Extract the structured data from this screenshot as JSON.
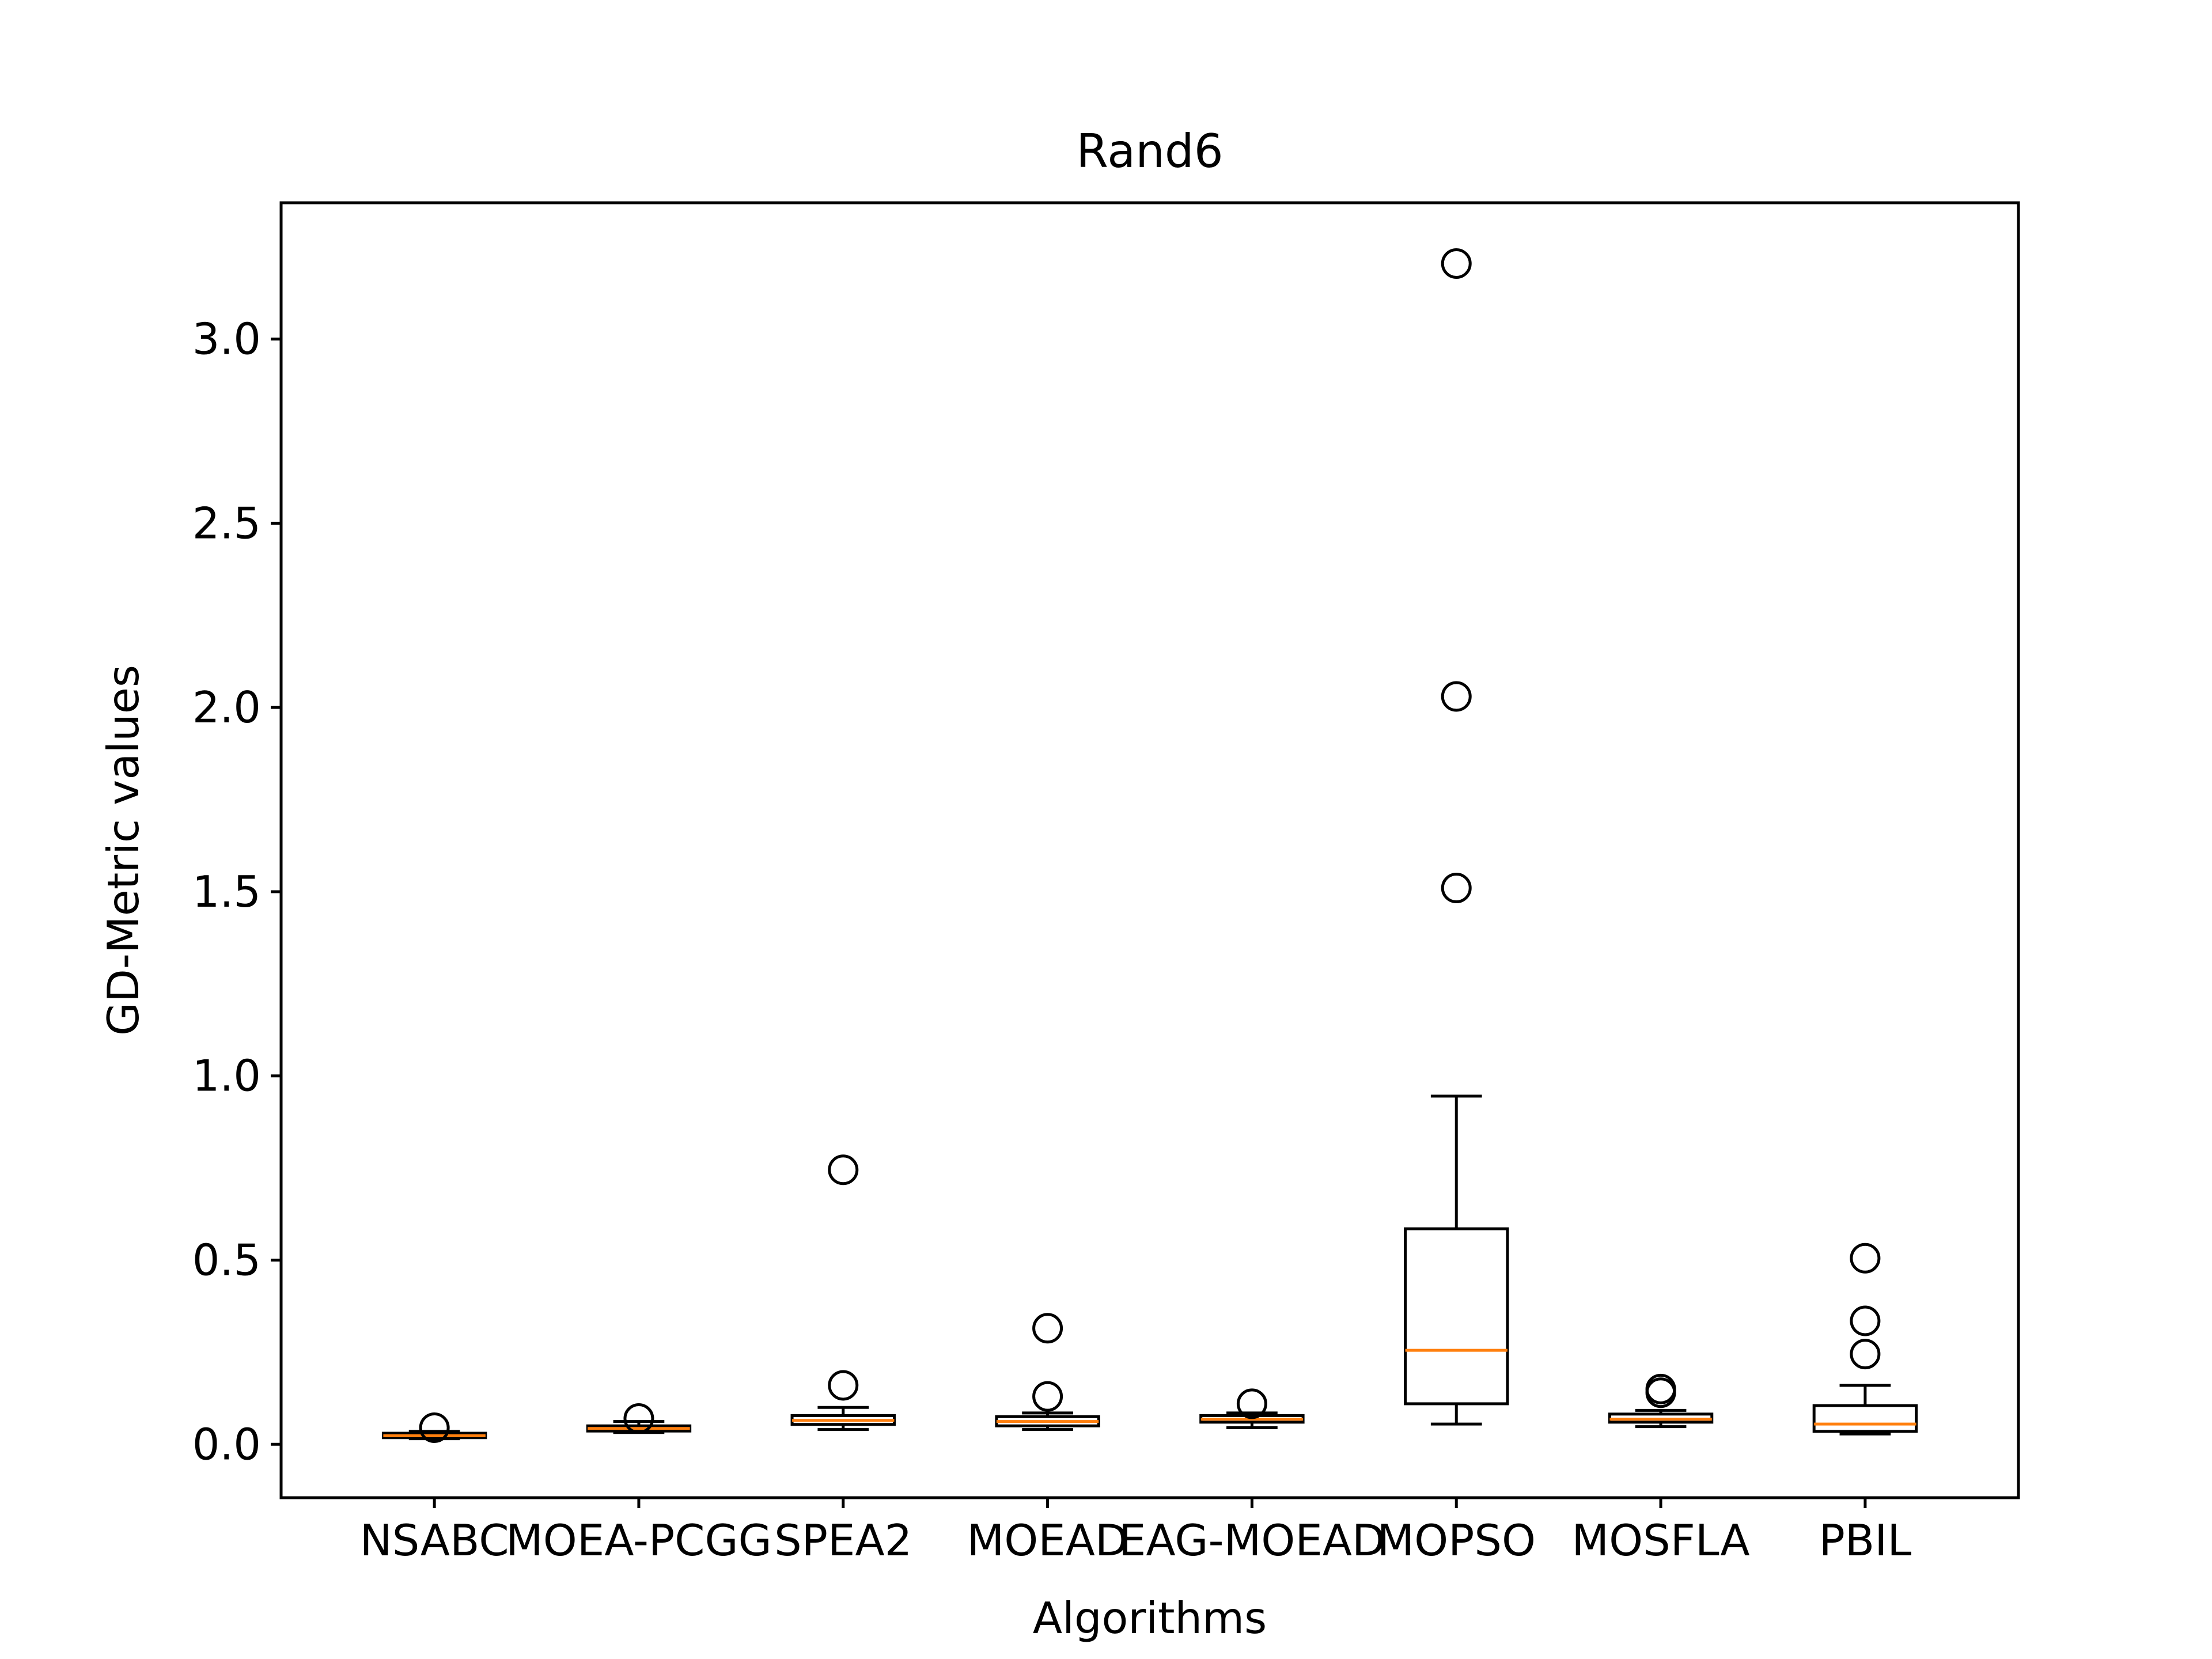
{
  "chart_data": {
    "type": "box",
    "title": "Rand6",
    "xlabel": "Algorithms",
    "ylabel": "GD-Metric values",
    "ylim": [
      -0.145,
      3.37
    ],
    "yticks": [
      0.0,
      0.5,
      1.0,
      1.5,
      2.0,
      2.5,
      3.0
    ],
    "ytick_labels": [
      "0.0",
      "0.5",
      "1.0",
      "1.5",
      "2.0",
      "2.5",
      "3.0"
    ],
    "grid": false,
    "legend": "none",
    "colors": {
      "box": "#000000",
      "median": "#ff7f0e",
      "flier": "#000000"
    },
    "categories": [
      "NSABC",
      "MOEA-PCGG",
      "SPEA2",
      "MOEAD",
      "EAG-MOEAD",
      "MOPSO",
      "MOSFLA",
      "PBIL"
    ],
    "boxes": [
      {
        "whislo": 0.015,
        "q1": 0.018,
        "med": 0.023,
        "q3": 0.03,
        "whishi": 0.035,
        "fliers": [
          0.045
        ]
      },
      {
        "whislo": 0.032,
        "q1": 0.036,
        "med": 0.043,
        "q3": 0.05,
        "whishi": 0.062,
        "fliers": [
          0.07
        ]
      },
      {
        "whislo": 0.04,
        "q1": 0.054,
        "med": 0.065,
        "q3": 0.078,
        "whishi": 0.1,
        "fliers": [
          0.16,
          0.745
        ]
      },
      {
        "whislo": 0.04,
        "q1": 0.05,
        "med": 0.062,
        "q3": 0.075,
        "whishi": 0.085,
        "fliers": [
          0.13,
          0.315
        ]
      },
      {
        "whislo": 0.045,
        "q1": 0.06,
        "med": 0.068,
        "q3": 0.078,
        "whishi": 0.085,
        "fliers": [
          0.11
        ]
      },
      {
        "whislo": 0.055,
        "q1": 0.11,
        "med": 0.255,
        "q3": 0.585,
        "whishi": 0.945,
        "fliers": [
          1.51,
          2.03,
          3.205
        ]
      },
      {
        "whislo": 0.048,
        "q1": 0.06,
        "med": 0.068,
        "q3": 0.082,
        "whishi": 0.092,
        "fliers": [
          0.14,
          0.15
        ]
      },
      {
        "whislo": 0.028,
        "q1": 0.035,
        "med": 0.055,
        "q3": 0.105,
        "whishi": 0.16,
        "fliers": [
          0.245,
          0.335,
          0.505
        ]
      }
    ]
  }
}
